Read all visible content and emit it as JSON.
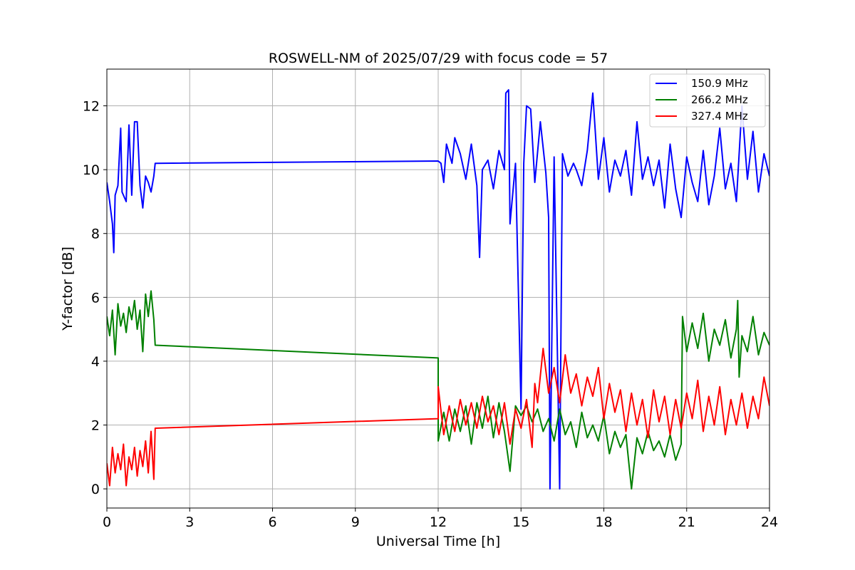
{
  "chart_data": {
    "type": "line",
    "title": "ROSWELL-NM of 2025/07/29 with focus code = 57",
    "xlabel": "Universal Time [h]",
    "ylabel": "Y-factor [dB]",
    "xlim": [
      0,
      24
    ],
    "ylim": [
      -0.6,
      13.15
    ],
    "xticks": [
      0,
      3,
      6,
      9,
      12,
      15,
      18,
      21,
      24
    ],
    "yticks": [
      0,
      2,
      4,
      6,
      8,
      10,
      12
    ],
    "grid": true,
    "legend_position": "top-right",
    "series": [
      {
        "name": "150.9 MHz",
        "color": "#0000ff",
        "points": [
          [
            0.0,
            9.6
          ],
          [
            0.1,
            9.0
          ],
          [
            0.2,
            8.3
          ],
          [
            0.25,
            7.4
          ],
          [
            0.3,
            9.2
          ],
          [
            0.4,
            9.5
          ],
          [
            0.5,
            11.3
          ],
          [
            0.55,
            9.3
          ],
          [
            0.7,
            9.0
          ],
          [
            0.8,
            11.4
          ],
          [
            0.9,
            9.2
          ],
          [
            1.0,
            11.5
          ],
          [
            1.1,
            11.5
          ],
          [
            1.2,
            9.5
          ],
          [
            1.3,
            8.8
          ],
          [
            1.4,
            9.8
          ],
          [
            1.5,
            9.6
          ],
          [
            1.6,
            9.3
          ],
          [
            1.7,
            9.8
          ],
          [
            1.75,
            10.2
          ],
          [
            12.0,
            10.27
          ],
          [
            12.1,
            10.2
          ],
          [
            12.2,
            9.6
          ],
          [
            12.3,
            10.8
          ],
          [
            12.5,
            10.2
          ],
          [
            12.6,
            11.0
          ],
          [
            12.8,
            10.5
          ],
          [
            13.0,
            9.7
          ],
          [
            13.2,
            10.8
          ],
          [
            13.4,
            9.5
          ],
          [
            13.5,
            7.25
          ],
          [
            13.6,
            10.0
          ],
          [
            13.8,
            10.3
          ],
          [
            14.0,
            9.4
          ],
          [
            14.2,
            10.6
          ],
          [
            14.4,
            10.0
          ],
          [
            14.45,
            12.4
          ],
          [
            14.55,
            12.5
          ],
          [
            14.6,
            8.3
          ],
          [
            14.8,
            10.2
          ],
          [
            15.0,
            2.5
          ],
          [
            15.1,
            10.2
          ],
          [
            15.2,
            12.0
          ],
          [
            15.35,
            11.9
          ],
          [
            15.5,
            9.6
          ],
          [
            15.7,
            11.5
          ],
          [
            15.9,
            9.9
          ],
          [
            16.0,
            8.5
          ],
          [
            16.05,
            0.0
          ],
          [
            16.2,
            10.4
          ],
          [
            16.4,
            0.0
          ],
          [
            16.5,
            10.5
          ],
          [
            16.7,
            9.8
          ],
          [
            16.9,
            10.2
          ],
          [
            17.0,
            10.0
          ],
          [
            17.2,
            9.5
          ],
          [
            17.4,
            10.6
          ],
          [
            17.6,
            12.4
          ],
          [
            17.8,
            9.7
          ],
          [
            18.0,
            11.0
          ],
          [
            18.2,
            9.3
          ],
          [
            18.4,
            10.3
          ],
          [
            18.6,
            9.8
          ],
          [
            18.8,
            10.6
          ],
          [
            19.0,
            9.2
          ],
          [
            19.2,
            11.5
          ],
          [
            19.4,
            9.7
          ],
          [
            19.6,
            10.4
          ],
          [
            19.8,
            9.5
          ],
          [
            20.0,
            10.3
          ],
          [
            20.2,
            8.8
          ],
          [
            20.4,
            10.8
          ],
          [
            20.6,
            9.4
          ],
          [
            20.8,
            8.5
          ],
          [
            21.0,
            10.4
          ],
          [
            21.2,
            9.6
          ],
          [
            21.4,
            9.0
          ],
          [
            21.6,
            10.6
          ],
          [
            21.8,
            8.9
          ],
          [
            22.0,
            9.8
          ],
          [
            22.2,
            11.3
          ],
          [
            22.4,
            9.4
          ],
          [
            22.6,
            10.2
          ],
          [
            22.8,
            9.0
          ],
          [
            23.0,
            12.0
          ],
          [
            23.2,
            9.7
          ],
          [
            23.4,
            11.2
          ],
          [
            23.6,
            9.3
          ],
          [
            23.8,
            10.5
          ],
          [
            24.0,
            9.8
          ]
        ]
      },
      {
        "name": "266.2 MHz",
        "color": "#008000",
        "points": [
          [
            0.0,
            5.4
          ],
          [
            0.1,
            4.8
          ],
          [
            0.2,
            5.6
          ],
          [
            0.3,
            4.2
          ],
          [
            0.4,
            5.8
          ],
          [
            0.5,
            5.1
          ],
          [
            0.6,
            5.5
          ],
          [
            0.7,
            4.9
          ],
          [
            0.8,
            5.7
          ],
          [
            0.9,
            5.3
          ],
          [
            1.0,
            5.9
          ],
          [
            1.1,
            5.0
          ],
          [
            1.2,
            5.6
          ],
          [
            1.3,
            4.3
          ],
          [
            1.4,
            6.1
          ],
          [
            1.5,
            5.4
          ],
          [
            1.6,
            6.2
          ],
          [
            1.7,
            5.3
          ],
          [
            1.75,
            4.5
          ],
          [
            12.0,
            4.1
          ],
          [
            12.0,
            1.5
          ],
          [
            12.2,
            2.4
          ],
          [
            12.4,
            1.5
          ],
          [
            12.6,
            2.5
          ],
          [
            12.8,
            1.8
          ],
          [
            13.0,
            2.6
          ],
          [
            13.2,
            1.4
          ],
          [
            13.4,
            2.7
          ],
          [
            13.6,
            1.9
          ],
          [
            13.8,
            2.9
          ],
          [
            14.0,
            1.6
          ],
          [
            14.2,
            2.7
          ],
          [
            14.4,
            1.8
          ],
          [
            14.6,
            0.55
          ],
          [
            14.8,
            2.6
          ],
          [
            15.0,
            2.3
          ],
          [
            15.2,
            2.6
          ],
          [
            15.4,
            2.1
          ],
          [
            15.6,
            2.5
          ],
          [
            15.8,
            1.8
          ],
          [
            16.0,
            2.2
          ],
          [
            16.2,
            1.5
          ],
          [
            16.4,
            2.5
          ],
          [
            16.6,
            1.7
          ],
          [
            16.8,
            2.1
          ],
          [
            17.0,
            1.3
          ],
          [
            17.2,
            2.4
          ],
          [
            17.4,
            1.6
          ],
          [
            17.6,
            2.0
          ],
          [
            17.8,
            1.5
          ],
          [
            18.0,
            2.3
          ],
          [
            18.2,
            1.1
          ],
          [
            18.4,
            1.8
          ],
          [
            18.6,
            1.3
          ],
          [
            18.8,
            1.7
          ],
          [
            19.0,
            0.0
          ],
          [
            19.2,
            1.6
          ],
          [
            19.4,
            1.1
          ],
          [
            19.6,
            1.8
          ],
          [
            19.8,
            1.2
          ],
          [
            20.0,
            1.5
          ],
          [
            20.2,
            1.0
          ],
          [
            20.4,
            1.7
          ],
          [
            20.6,
            0.9
          ],
          [
            20.8,
            1.4
          ],
          [
            20.85,
            5.4
          ],
          [
            21.0,
            4.3
          ],
          [
            21.2,
            5.2
          ],
          [
            21.4,
            4.4
          ],
          [
            21.6,
            5.5
          ],
          [
            21.8,
            4.0
          ],
          [
            22.0,
            5.0
          ],
          [
            22.2,
            4.5
          ],
          [
            22.4,
            5.3
          ],
          [
            22.6,
            4.1
          ],
          [
            22.8,
            5.0
          ],
          [
            22.85,
            5.9
          ],
          [
            22.9,
            3.5
          ],
          [
            23.0,
            4.8
          ],
          [
            23.2,
            4.3
          ],
          [
            23.4,
            5.4
          ],
          [
            23.6,
            4.2
          ],
          [
            23.8,
            4.9
          ],
          [
            24.0,
            4.5
          ]
        ]
      },
      {
        "name": "327.4 MHz",
        "color": "#ff0000",
        "points": [
          [
            0.0,
            0.8
          ],
          [
            0.1,
            0.1
          ],
          [
            0.2,
            1.3
          ],
          [
            0.3,
            0.5
          ],
          [
            0.4,
            1.1
          ],
          [
            0.5,
            0.6
          ],
          [
            0.6,
            1.4
          ],
          [
            0.7,
            0.1
          ],
          [
            0.8,
            1.0
          ],
          [
            0.9,
            0.6
          ],
          [
            1.0,
            1.3
          ],
          [
            1.1,
            0.4
          ],
          [
            1.2,
            1.2
          ],
          [
            1.3,
            0.7
          ],
          [
            1.4,
            1.5
          ],
          [
            1.5,
            0.5
          ],
          [
            1.6,
            1.8
          ],
          [
            1.7,
            0.3
          ],
          [
            1.75,
            1.9
          ],
          [
            12.0,
            2.2
          ],
          [
            12.0,
            3.2
          ],
          [
            12.2,
            1.7
          ],
          [
            12.4,
            2.6
          ],
          [
            12.6,
            1.8
          ],
          [
            12.8,
            2.8
          ],
          [
            13.0,
            2.0
          ],
          [
            13.2,
            2.7
          ],
          [
            13.4,
            1.9
          ],
          [
            13.6,
            2.9
          ],
          [
            13.8,
            2.1
          ],
          [
            14.0,
            2.6
          ],
          [
            14.2,
            1.7
          ],
          [
            14.4,
            2.7
          ],
          [
            14.6,
            1.4
          ],
          [
            14.8,
            2.5
          ],
          [
            15.0,
            1.9
          ],
          [
            15.2,
            2.8
          ],
          [
            15.4,
            1.3
          ],
          [
            15.5,
            3.3
          ],
          [
            15.6,
            2.7
          ],
          [
            15.8,
            4.4
          ],
          [
            16.0,
            3.0
          ],
          [
            16.2,
            3.8
          ],
          [
            16.4,
            2.7
          ],
          [
            16.6,
            4.2
          ],
          [
            16.8,
            3.0
          ],
          [
            17.0,
            3.6
          ],
          [
            17.2,
            2.6
          ],
          [
            17.4,
            3.5
          ],
          [
            17.6,
            2.9
          ],
          [
            17.8,
            3.8
          ],
          [
            18.0,
            2.2
          ],
          [
            18.2,
            3.3
          ],
          [
            18.4,
            2.4
          ],
          [
            18.6,
            3.1
          ],
          [
            18.8,
            1.8
          ],
          [
            19.0,
            3.0
          ],
          [
            19.2,
            2.0
          ],
          [
            19.4,
            2.8
          ],
          [
            19.6,
            1.6
          ],
          [
            19.8,
            3.1
          ],
          [
            20.0,
            2.1
          ],
          [
            20.2,
            2.9
          ],
          [
            20.4,
            1.7
          ],
          [
            20.6,
            2.8
          ],
          [
            20.8,
            1.9
          ],
          [
            21.0,
            3.0
          ],
          [
            21.2,
            2.2
          ],
          [
            21.4,
            3.4
          ],
          [
            21.6,
            1.8
          ],
          [
            21.8,
            2.9
          ],
          [
            22.0,
            2.0
          ],
          [
            22.2,
            3.2
          ],
          [
            22.4,
            1.7
          ],
          [
            22.6,
            2.8
          ],
          [
            22.8,
            2.0
          ],
          [
            23.0,
            3.0
          ],
          [
            23.2,
            1.9
          ],
          [
            23.4,
            2.9
          ],
          [
            23.6,
            2.2
          ],
          [
            23.8,
            3.5
          ],
          [
            24.0,
            2.6
          ]
        ]
      }
    ]
  }
}
